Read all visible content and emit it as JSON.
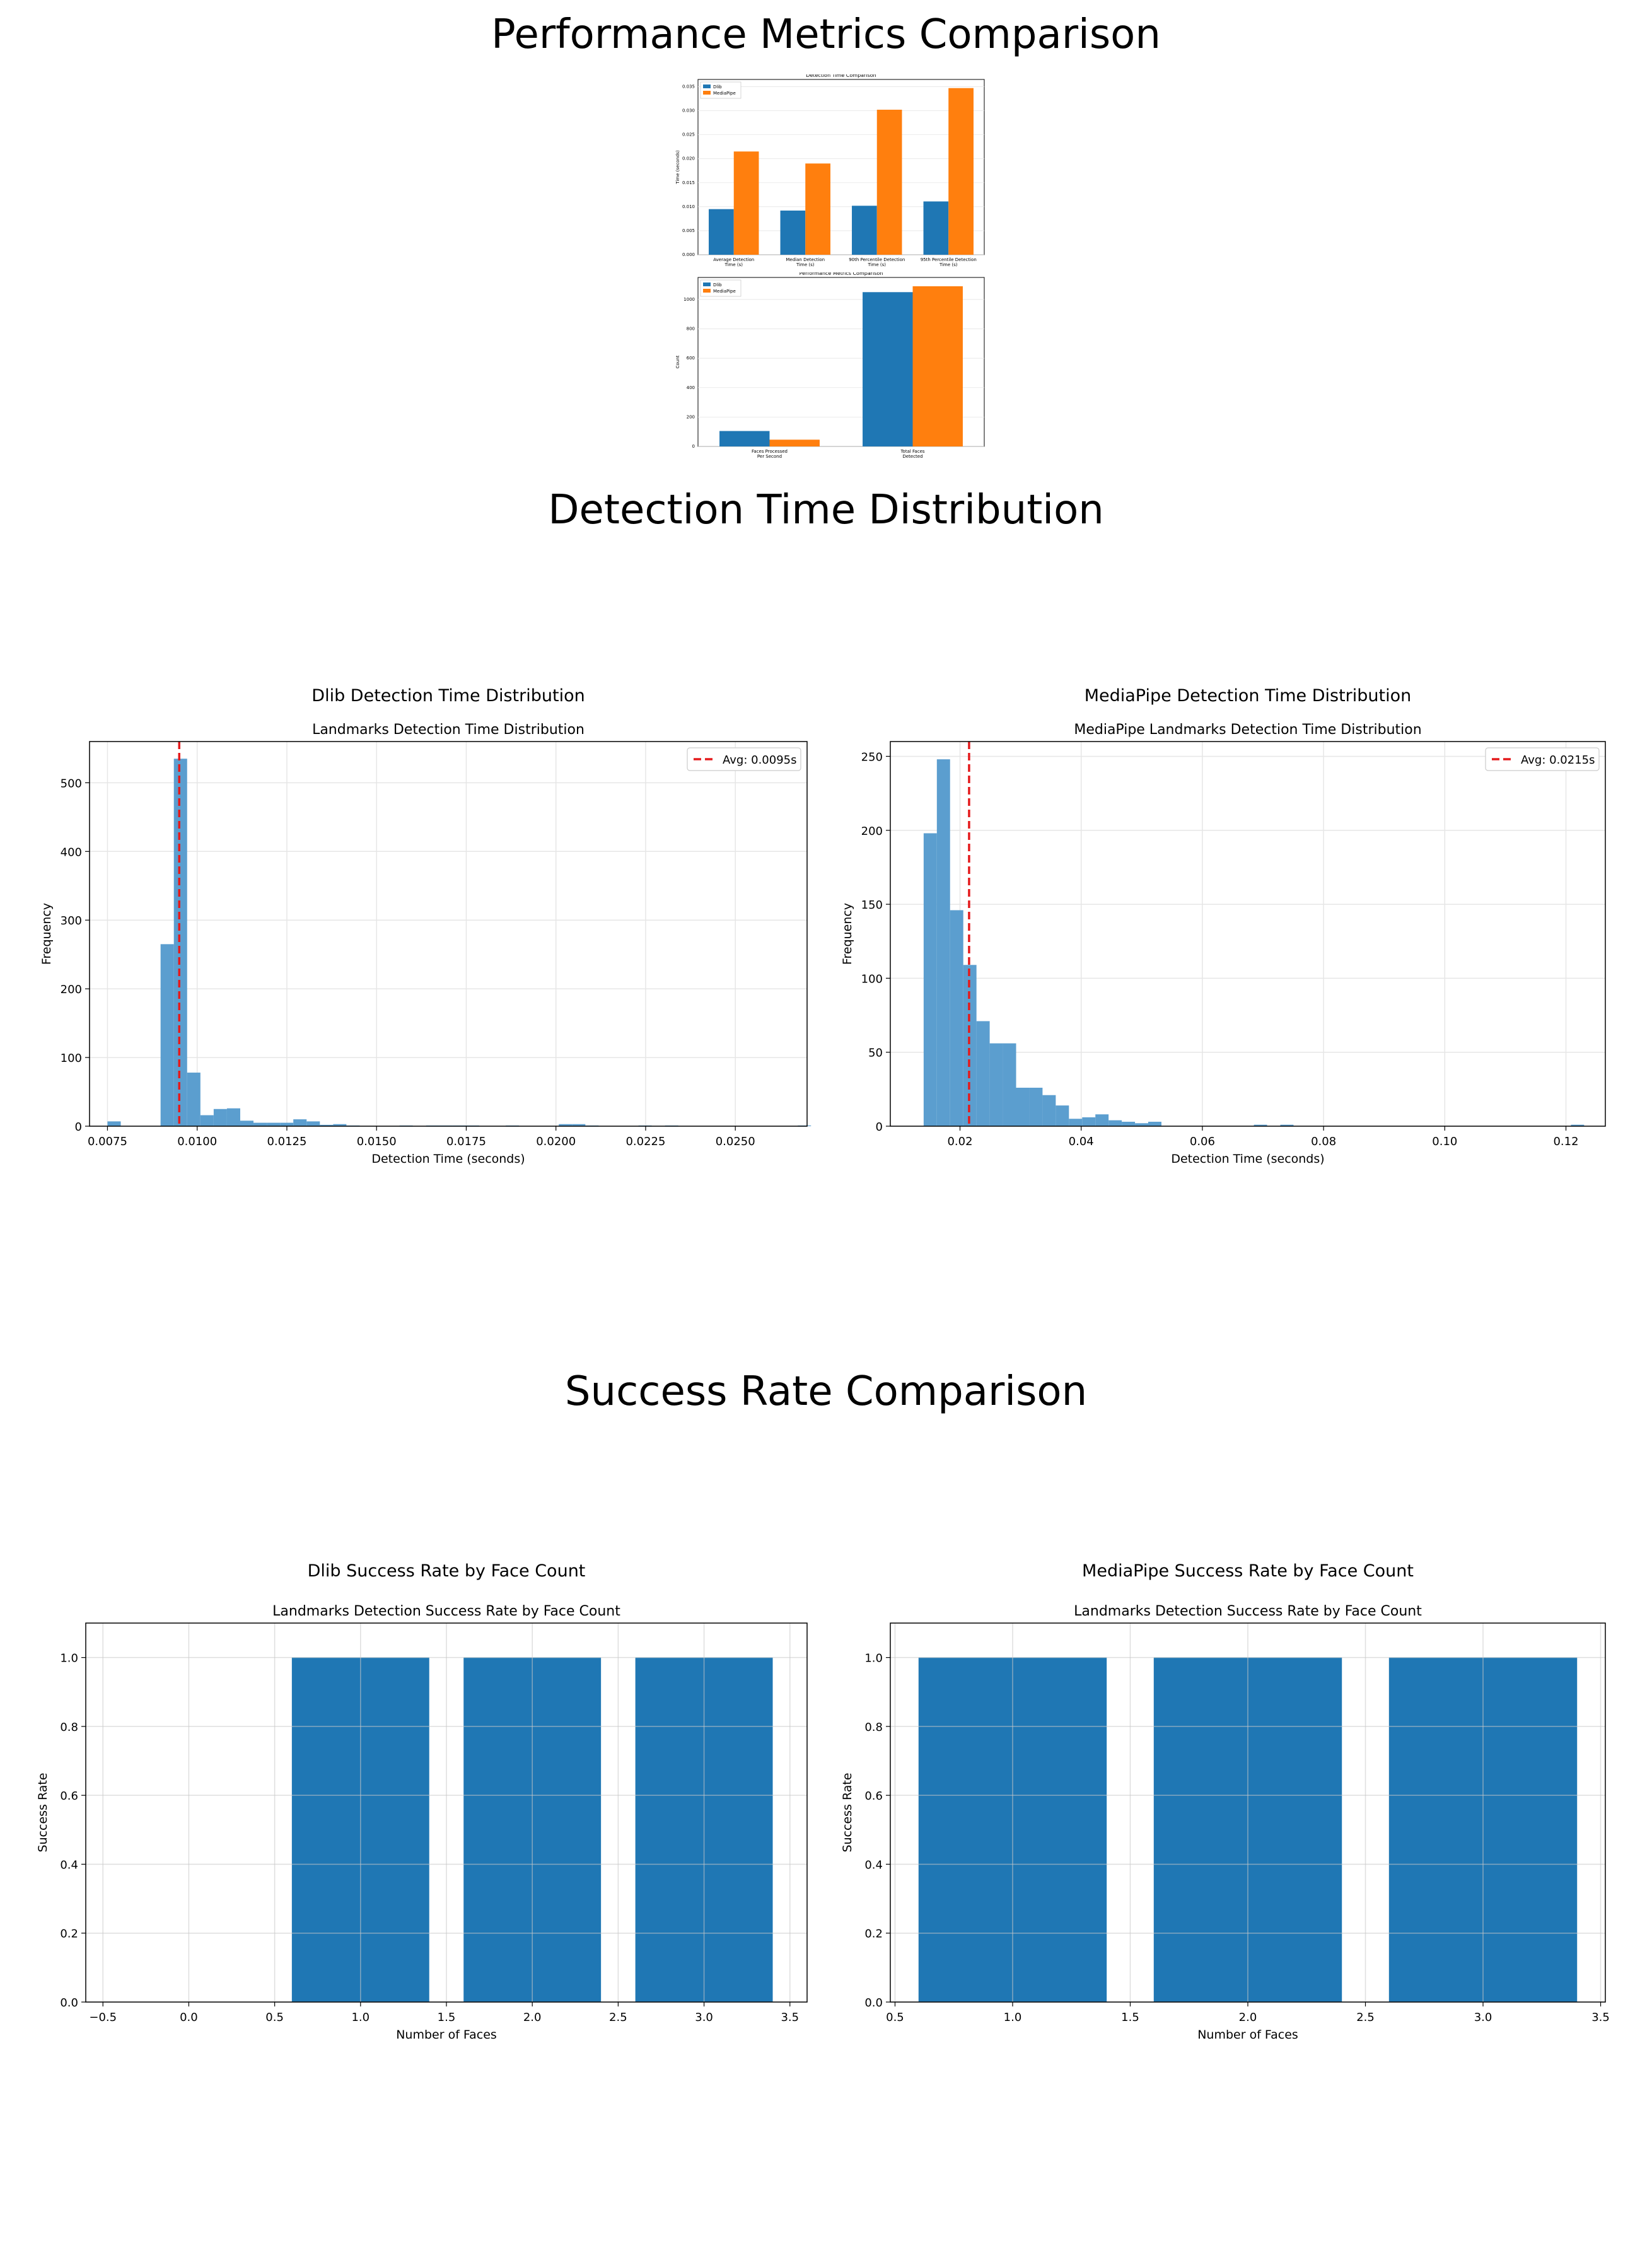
{
  "sections": {
    "performance": "Performance Metrics Comparison",
    "distribution": "Detection Time Distribution",
    "success": "Success Rate Comparison"
  },
  "colors": {
    "dlib": "#1f77b4",
    "mediapipe": "#ff7f0e",
    "hist": "#5b9ecf",
    "avg_line": "#e41a1c"
  },
  "chart_data": [
    {
      "id": "time_comparison",
      "type": "bar",
      "title": "Detection Time Comparison",
      "ylabel": "Time (seconds)",
      "categories": [
        "Average Detection Time (s)",
        "Median Detection Time (s)",
        "90th Percentile Detection Time (s)",
        "95th Percentile Detection Time (s)"
      ],
      "series": [
        {
          "name": "Dlib",
          "values": [
            0.0095,
            0.0092,
            0.0102,
            0.0111
          ]
        },
        {
          "name": "MediaPipe",
          "values": [
            0.0215,
            0.019,
            0.0302,
            0.0347
          ]
        }
      ],
      "ylim": [
        0,
        0.0365
      ],
      "yticks": [
        0.0,
        0.005,
        0.01,
        0.015,
        0.02,
        0.025,
        0.03,
        0.035
      ],
      "ytick_labels": [
        "0.000",
        "0.005",
        "0.010",
        "0.015",
        "0.020",
        "0.025",
        "0.030",
        "0.035"
      ],
      "legend": "top-left",
      "grid": true
    },
    {
      "id": "performance_metrics",
      "type": "bar",
      "title": "Performance Metrics Comparison",
      "ylabel": "Count",
      "categories": [
        "Faces Processed Per Second",
        "Total Faces Detected"
      ],
      "series": [
        {
          "name": "Dlib",
          "values": [
            105,
            1050
          ]
        },
        {
          "name": "MediaPipe",
          "values": [
            46,
            1090
          ]
        }
      ],
      "ylim": [
        0,
        1150
      ],
      "yticks": [
        0,
        200,
        400,
        600,
        800,
        1000
      ],
      "ytick_labels": [
        "0",
        "200",
        "400",
        "600",
        "800",
        "1000"
      ],
      "legend": "top-left",
      "grid": true
    },
    {
      "id": "dlib_hist",
      "type": "bar",
      "suptitle": "Dlib Detection Time Distribution",
      "title": "Landmarks Detection Time Distribution",
      "xlabel": "Detection Time (seconds)",
      "ylabel": "Frequency",
      "bin_start": 0.0075,
      "bin_width": 0.00037,
      "counts": [
        7,
        0,
        0,
        0,
        265,
        535,
        78,
        16,
        25,
        26,
        8,
        5,
        5,
        5,
        10,
        7,
        2,
        3,
        1,
        0,
        0,
        0,
        1,
        0,
        1,
        1,
        1,
        1,
        0,
        0,
        1,
        0,
        0,
        0,
        3,
        3,
        1,
        0,
        0,
        0,
        1,
        0,
        1,
        0,
        0,
        0,
        0,
        0,
        0,
        0,
        0,
        0,
        1
      ],
      "xlim": [
        0.007,
        0.027
      ],
      "xticks": [
        0.0075,
        0.01,
        0.0125,
        0.015,
        0.0175,
        0.02,
        0.0225,
        0.025
      ],
      "xtick_labels": [
        "0.0075",
        "0.0100",
        "0.0125",
        "0.0150",
        "0.0175",
        "0.0200",
        "0.0225",
        "0.0250"
      ],
      "ylim": [
        0,
        560
      ],
      "yticks": [
        0,
        100,
        200,
        300,
        400,
        500
      ],
      "ytick_labels": [
        "0",
        "100",
        "200",
        "300",
        "400",
        "500"
      ],
      "avg": 0.0095,
      "legend_label": "Avg: 0.0095s",
      "legend": "top-right",
      "grid": true
    },
    {
      "id": "mediapipe_hist",
      "type": "bar",
      "suptitle": "MediaPipe Detection Time Distribution",
      "title": "MediaPipe Landmarks Detection Time Distribution",
      "xlabel": "Detection Time (seconds)",
      "ylabel": "Frequency",
      "bin_start": 0.014,
      "bin_width": 0.00218,
      "counts": [
        198,
        248,
        146,
        109,
        71,
        56,
        56,
        26,
        26,
        21,
        14,
        5,
        6,
        8,
        4,
        3,
        2,
        3,
        0,
        0,
        0,
        0,
        0,
        0,
        0,
        1,
        0,
        1,
        0,
        0,
        0,
        0,
        0,
        0,
        0,
        0,
        0,
        0,
        0,
        0,
        0,
        0,
        0,
        0,
        0,
        0,
        0,
        0,
        0,
        1
      ],
      "xlim": [
        0.0085,
        0.1265
      ],
      "xticks": [
        0.02,
        0.04,
        0.06,
        0.08,
        0.1,
        0.12
      ],
      "xtick_labels": [
        "0.02",
        "0.04",
        "0.06",
        "0.08",
        "0.10",
        "0.12"
      ],
      "ylim": [
        0,
        260
      ],
      "yticks": [
        0,
        50,
        100,
        150,
        200,
        250
      ],
      "ytick_labels": [
        "0",
        "50",
        "100",
        "150",
        "200",
        "250"
      ],
      "avg": 0.0215,
      "legend_label": "Avg: 0.0215s",
      "legend": "top-right",
      "grid": true
    },
    {
      "id": "dlib_success",
      "type": "bar",
      "suptitle": "Dlib Success Rate by Face Count",
      "title": "Landmarks Detection Success Rate by Face Count",
      "xlabel": "Number of Faces",
      "ylabel": "Success Rate",
      "x": [
        1,
        2,
        3
      ],
      "values": [
        1.0,
        1.0,
        1.0
      ],
      "bar_width": 0.8,
      "xlim": [
        -0.6,
        3.6
      ],
      "xticks": [
        -0.5,
        0.0,
        0.5,
        1.0,
        1.5,
        2.0,
        2.5,
        3.0,
        3.5
      ],
      "xtick_labels": [
        "−0.5",
        "0.0",
        "0.5",
        "1.0",
        "1.5",
        "2.0",
        "2.5",
        "3.0",
        "3.5"
      ],
      "ylim": [
        0,
        1.1
      ],
      "yticks": [
        0.0,
        0.2,
        0.4,
        0.6,
        0.8,
        1.0
      ],
      "ytick_labels": [
        "0.0",
        "0.2",
        "0.4",
        "0.6",
        "0.8",
        "1.0"
      ],
      "grid": true
    },
    {
      "id": "mediapipe_success",
      "type": "bar",
      "suptitle": "MediaPipe Success Rate by Face Count",
      "title": "Landmarks Detection Success Rate by Face Count",
      "xlabel": "Number of Faces",
      "ylabel": "Success Rate",
      "x": [
        1,
        2,
        3
      ],
      "values": [
        1.0,
        1.0,
        1.0
      ],
      "bar_width": 0.8,
      "xlim": [
        0.48,
        3.52
      ],
      "xticks": [
        0.5,
        1.0,
        1.5,
        2.0,
        2.5,
        3.0,
        3.5
      ],
      "xtick_labels": [
        "0.5",
        "1.0",
        "1.5",
        "2.0",
        "2.5",
        "3.0",
        "3.5"
      ],
      "ylim": [
        0,
        1.1
      ],
      "yticks": [
        0.0,
        0.2,
        0.4,
        0.6,
        0.8,
        1.0
      ],
      "ytick_labels": [
        "0.0",
        "0.2",
        "0.4",
        "0.6",
        "0.8",
        "1.0"
      ],
      "grid": true
    }
  ]
}
